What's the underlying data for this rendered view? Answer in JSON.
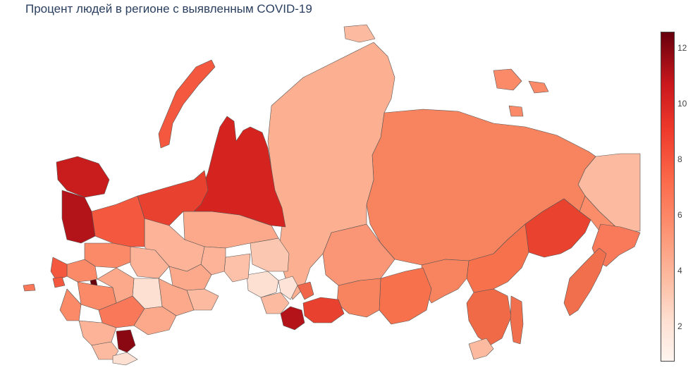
{
  "title": "Процент людей в регионе с выявленным COVID-19",
  "colorbar": {
    "ticks": [
      "12",
      "10",
      "8",
      "6",
      "4",
      "2"
    ],
    "min": 0.8,
    "max": 12.6,
    "colorscale": [
      "#fff5f0",
      "#fee0d2",
      "#fcbba1",
      "#fc9272",
      "#fb6a4a",
      "#ef3b2c",
      "#cb181d",
      "#67000d"
    ]
  }
}
